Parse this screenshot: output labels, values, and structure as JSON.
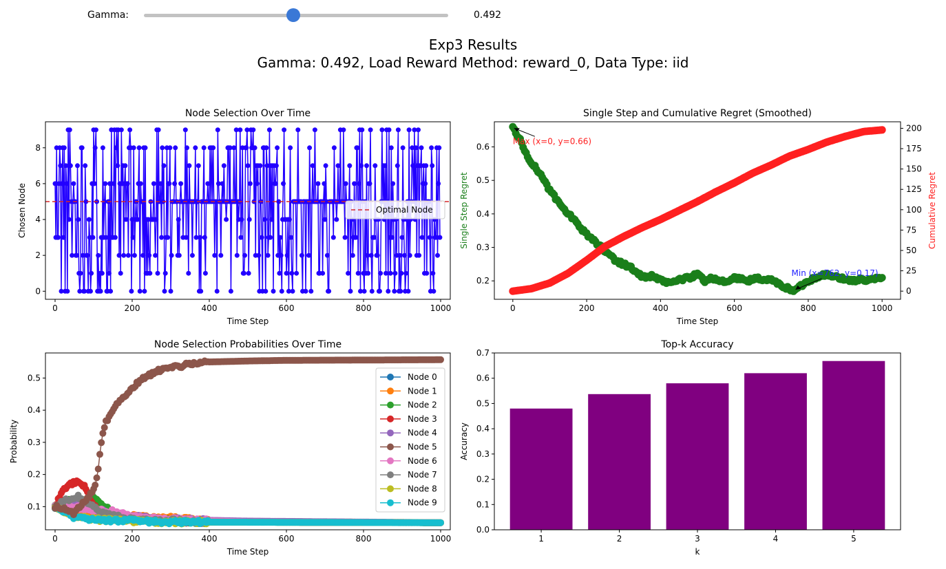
{
  "slider": {
    "label": "Gamma:",
    "value": "0.492",
    "fraction": 0.492
  },
  "suptitle": {
    "line1": "Exp3 Results",
    "line2": "Gamma: 0.492, Load Reward Method: reward_0, Data Type: iid"
  },
  "colors": {
    "selection": "#2200ff",
    "optimal": "#d62728",
    "regret_single": "#1a7f1a",
    "regret_cum": "#ff2020",
    "bars": "#800080",
    "min_annot": "#2222ff"
  },
  "chart_data": [
    {
      "type": "line",
      "title": "Node Selection Over Time",
      "xlabel": "Time Step",
      "ylabel": "Chosen Node",
      "xlim": [
        -25,
        1025
      ],
      "ylim": [
        -0.45,
        9.45
      ],
      "xticks": [
        0,
        200,
        400,
        600,
        800,
        1000
      ],
      "yticks": [
        0,
        2,
        4,
        6,
        8
      ],
      "optimal_node": 5,
      "legend": [
        {
          "label": "Optimal Node",
          "style": "dashed red"
        }
      ],
      "legend_loc": "center right",
      "series": [
        {
          "name": "",
          "steps": 1000,
          "values_range": [
            0,
            9
          ],
          "description_values": [
            0,
            1,
            2,
            3,
            4,
            5,
            6,
            7,
            8,
            9
          ]
        }
      ]
    },
    {
      "type": "line",
      "title": "Single Step and Cumulative Regret (Smoothed)",
      "xlabel": "Time Step",
      "ylabel_left": "Single Step Regret",
      "ylabel_right": "Cumulative Regret",
      "xlim": [
        -50,
        1050
      ],
      "ylim_left": [
        0.145,
        0.675
      ],
      "ylim_right": [
        -10,
        208
      ],
      "xticks": [
        0,
        200,
        400,
        600,
        800,
        1000
      ],
      "yticks_left": [
        0.2,
        0.3,
        0.4,
        0.5,
        0.6
      ],
      "yticks_right": [
        0,
        25,
        50,
        75,
        100,
        125,
        150,
        175,
        200
      ],
      "single_step_points": [
        [
          0,
          0.66
        ],
        [
          20,
          0.62
        ],
        [
          40,
          0.57
        ],
        [
          60,
          0.54
        ],
        [
          80,
          0.51
        ],
        [
          100,
          0.47
        ],
        [
          120,
          0.44
        ],
        [
          140,
          0.41
        ],
        [
          160,
          0.39
        ],
        [
          180,
          0.36
        ],
        [
          200,
          0.34
        ],
        [
          220,
          0.32
        ],
        [
          240,
          0.3
        ],
        [
          260,
          0.28
        ],
        [
          280,
          0.26
        ],
        [
          300,
          0.25
        ],
        [
          320,
          0.24
        ],
        [
          340,
          0.22
        ],
        [
          360,
          0.21
        ],
        [
          380,
          0.215
        ],
        [
          400,
          0.2
        ],
        [
          420,
          0.195
        ],
        [
          440,
          0.2
        ],
        [
          460,
          0.205
        ],
        [
          480,
          0.21
        ],
        [
          500,
          0.22
        ],
        [
          520,
          0.2
        ],
        [
          540,
          0.21
        ],
        [
          560,
          0.2
        ],
        [
          580,
          0.195
        ],
        [
          600,
          0.21
        ],
        [
          620,
          0.205
        ],
        [
          640,
          0.2
        ],
        [
          660,
          0.21
        ],
        [
          680,
          0.2
        ],
        [
          700,
          0.205
        ],
        [
          720,
          0.19
        ],
        [
          740,
          0.18
        ],
        [
          762,
          0.17
        ],
        [
          780,
          0.185
        ],
        [
          800,
          0.2
        ],
        [
          820,
          0.21
        ],
        [
          840,
          0.22
        ],
        [
          860,
          0.215
        ],
        [
          880,
          0.21
        ],
        [
          900,
          0.205
        ],
        [
          920,
          0.2
        ],
        [
          940,
          0.205
        ],
        [
          960,
          0.2
        ],
        [
          980,
          0.205
        ],
        [
          1000,
          0.21
        ]
      ],
      "cumulative_points": [
        [
          0,
          0
        ],
        [
          50,
          3
        ],
        [
          100,
          10
        ],
        [
          150,
          22
        ],
        [
          200,
          38
        ],
        [
          250,
          55
        ],
        [
          300,
          67
        ],
        [
          350,
          78
        ],
        [
          400,
          88
        ],
        [
          450,
          99
        ],
        [
          500,
          110
        ],
        [
          550,
          122
        ],
        [
          600,
          133
        ],
        [
          650,
          145
        ],
        [
          700,
          155
        ],
        [
          750,
          166
        ],
        [
          800,
          174
        ],
        [
          850,
          183
        ],
        [
          900,
          190
        ],
        [
          950,
          196
        ],
        [
          1000,
          198
        ]
      ],
      "annotations": [
        {
          "text": "Max (x=0, y=0.66)",
          "x": 0,
          "y": 0.66
        },
        {
          "text": "Min (x=762, y=0.17)",
          "x": 762,
          "y": 0.17
        }
      ]
    },
    {
      "type": "line",
      "title": "Node Selection Probabilities Over Time",
      "xlabel": "Time Step",
      "ylabel": "Probability",
      "xlim": [
        -25,
        1025
      ],
      "ylim": [
        0.028,
        0.578
      ],
      "xticks": [
        0,
        200,
        400,
        600,
        800,
        1000
      ],
      "yticks": [
        0.1,
        0.2,
        0.3,
        0.4,
        0.5
      ],
      "legend_loc": "upper right",
      "series": [
        {
          "name": "Node 0",
          "color": "#1f77b4",
          "points": [
            [
              0,
              0.1
            ],
            [
              50,
              0.08
            ],
            [
              100,
              0.07
            ],
            [
              200,
              0.06
            ],
            [
              400,
              0.052
            ],
            [
              1000,
              0.05
            ]
          ]
        },
        {
          "name": "Node 1",
          "color": "#ff7f0e",
          "points": [
            [
              0,
              0.1
            ],
            [
              50,
              0.09
            ],
            [
              100,
              0.08
            ],
            [
              200,
              0.07
            ],
            [
              300,
              0.065
            ],
            [
              400,
              0.055
            ],
            [
              1000,
              0.05
            ]
          ]
        },
        {
          "name": "Node 2",
          "color": "#2ca02c",
          "points": [
            [
              0,
              0.1
            ],
            [
              30,
              0.12
            ],
            [
              60,
              0.11
            ],
            [
              100,
              0.13
            ],
            [
              150,
              0.08
            ],
            [
              200,
              0.06
            ],
            [
              400,
              0.052
            ],
            [
              1000,
              0.05
            ]
          ]
        },
        {
          "name": "Node 3",
          "color": "#d62728",
          "points": [
            [
              0,
              0.1
            ],
            [
              20,
              0.15
            ],
            [
              40,
              0.17
            ],
            [
              60,
              0.18
            ],
            [
              80,
              0.16
            ],
            [
              100,
              0.1
            ],
            [
              150,
              0.07
            ],
            [
              200,
              0.06
            ],
            [
              400,
              0.052
            ],
            [
              1000,
              0.05
            ]
          ]
        },
        {
          "name": "Node 4",
          "color": "#9467bd",
          "points": [
            [
              0,
              0.1
            ],
            [
              50,
              0.11
            ],
            [
              100,
              0.09
            ],
            [
              200,
              0.07
            ],
            [
              300,
              0.06
            ],
            [
              500,
              0.055
            ],
            [
              1000,
              0.05
            ]
          ]
        },
        {
          "name": "Node 5",
          "color": "#8c564b",
          "points": [
            [
              0,
              0.1
            ],
            [
              50,
              0.08
            ],
            [
              100,
              0.15
            ],
            [
              110,
              0.2
            ],
            [
              120,
              0.3
            ],
            [
              130,
              0.36
            ],
            [
              150,
              0.4
            ],
            [
              170,
              0.43
            ],
            [
              200,
              0.47
            ],
            [
              230,
              0.5
            ],
            [
              260,
              0.52
            ],
            [
              300,
              0.53
            ],
            [
              350,
              0.545
            ],
            [
              400,
              0.55
            ],
            [
              500,
              0.553
            ],
            [
              600,
              0.555
            ],
            [
              800,
              0.556
            ],
            [
              1000,
              0.557
            ]
          ]
        },
        {
          "name": "Node 6",
          "color": "#e377c2",
          "points": [
            [
              0,
              0.1
            ],
            [
              50,
              0.1
            ],
            [
              100,
              0.09
            ],
            [
              150,
              0.085
            ],
            [
              200,
              0.07
            ],
            [
              300,
              0.06
            ],
            [
              500,
              0.052
            ],
            [
              1000,
              0.05
            ]
          ]
        },
        {
          "name": "Node 7",
          "color": "#7f7f7f",
          "points": [
            [
              0,
              0.1
            ],
            [
              30,
              0.12
            ],
            [
              60,
              0.13
            ],
            [
              90,
              0.11
            ],
            [
              120,
              0.08
            ],
            [
              200,
              0.06
            ],
            [
              400,
              0.052
            ],
            [
              1000,
              0.05
            ]
          ]
        },
        {
          "name": "Node 8",
          "color": "#bcbd22",
          "points": [
            [
              0,
              0.1
            ],
            [
              50,
              0.07
            ],
            [
              100,
              0.06
            ],
            [
              200,
              0.055
            ],
            [
              300,
              0.052
            ],
            [
              1000,
              0.05
            ]
          ]
        },
        {
          "name": "Node 9",
          "color": "#17becf",
          "points": [
            [
              0,
              0.1
            ],
            [
              50,
              0.065
            ],
            [
              100,
              0.06
            ],
            [
              200,
              0.055
            ],
            [
              300,
              0.052
            ],
            [
              1000,
              0.05
            ]
          ]
        }
      ]
    },
    {
      "type": "bar",
      "title": "Top-k Accuracy",
      "xlabel": "k",
      "ylabel": "Accuracy",
      "categories": [
        "1",
        "2",
        "3",
        "4",
        "5"
      ],
      "values": [
        0.48,
        0.537,
        0.58,
        0.62,
        0.668
      ],
      "ylim": [
        0.0,
        0.7
      ],
      "yticks": [
        0.0,
        0.1,
        0.2,
        0.3,
        0.4,
        0.5,
        0.6,
        0.7
      ]
    }
  ]
}
